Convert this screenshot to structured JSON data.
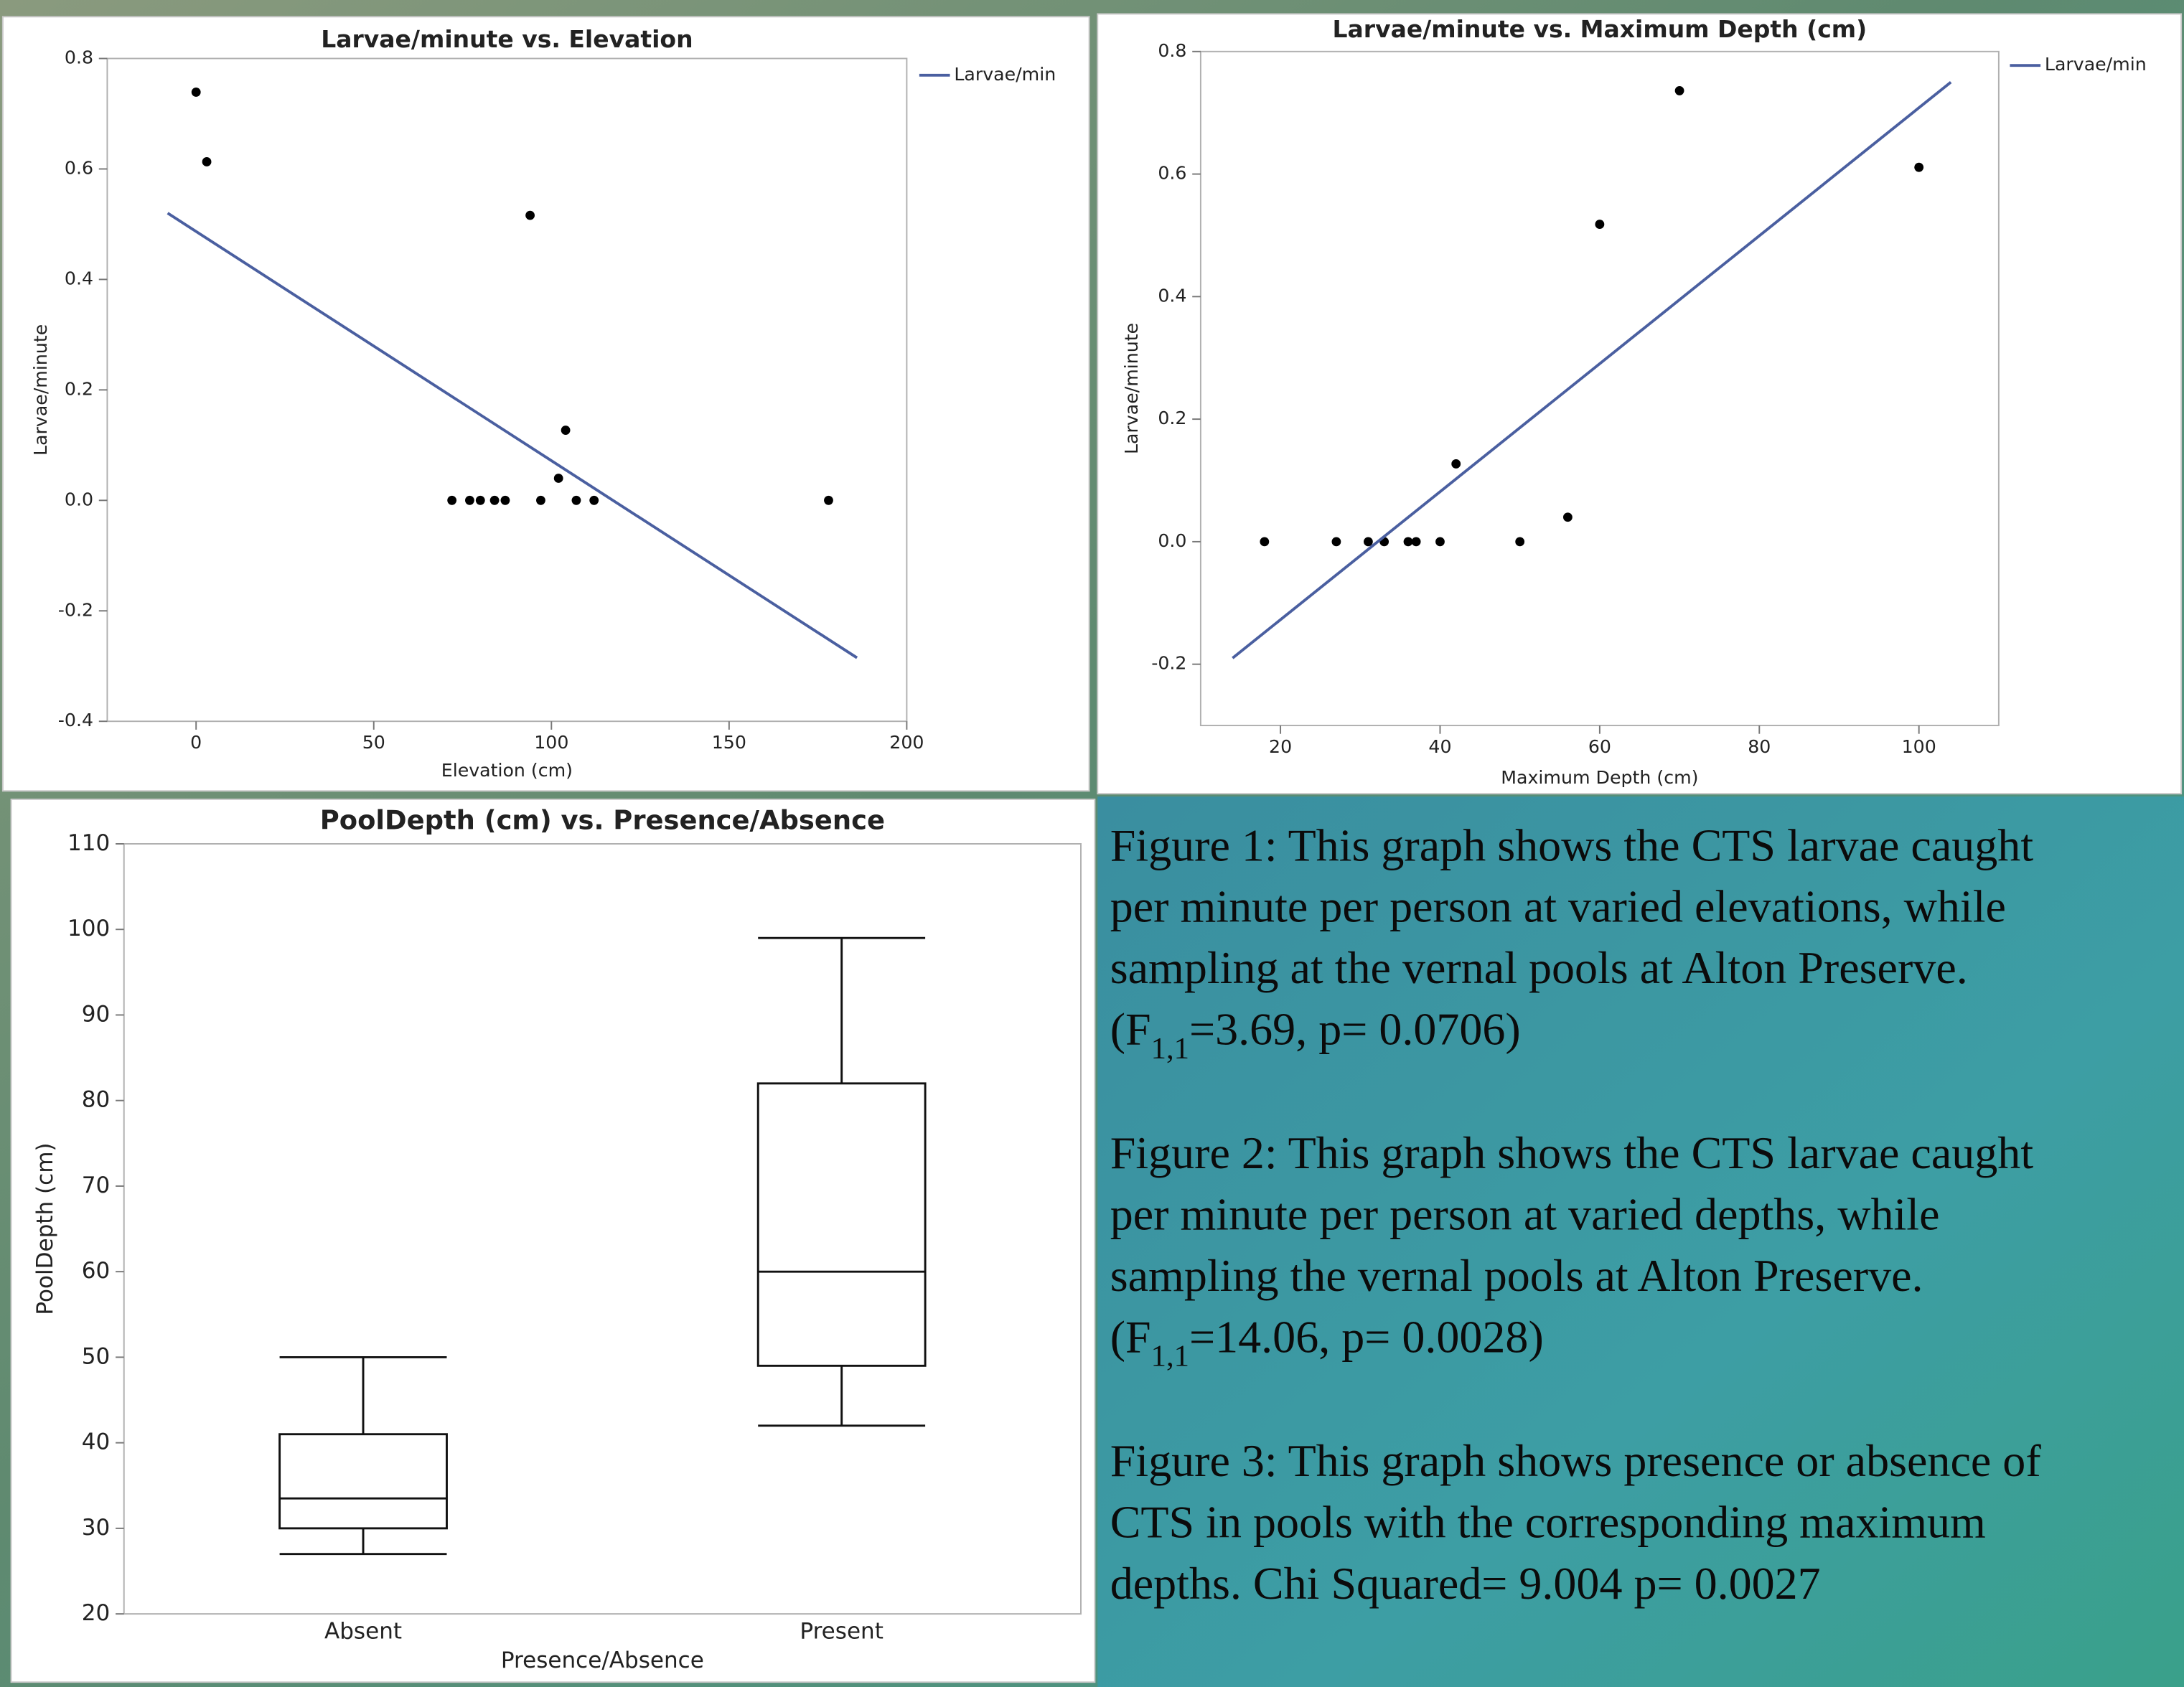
{
  "chart_data": [
    {
      "type": "scatter",
      "title": "Larvae/minute vs. Elevation",
      "xlabel": "Elevation (cm)",
      "ylabel": "Larvae/minute",
      "xlim": [
        -25,
        200
      ],
      "ylim": [
        -0.4,
        0.8
      ],
      "xticks": [
        0,
        50,
        100,
        150,
        200
      ],
      "yticks": [
        -0.4,
        -0.2,
        {
          "value": 0,
          "label": "0.0"
        },
        0.2,
        0.4,
        0.6,
        0.8
      ],
      "series": [
        {
          "style": "markers",
          "color": "#000000",
          "x": [
            0,
            3,
            94,
            104,
            102,
            72,
            77,
            80,
            84,
            87,
            97,
            107,
            112,
            178
          ],
          "values": [
            0.739,
            0.613,
            0.516,
            0.127,
            0.04,
            0,
            0,
            0,
            0,
            0,
            0,
            0,
            0,
            0
          ]
        },
        {
          "style": "line",
          "name": "Larvae/min",
          "color": "#4a5fa0",
          "x": [
            -8,
            186
          ],
          "values": [
            0.52,
            -0.285
          ]
        }
      ]
    },
    {
      "type": "scatter",
      "title": "Larvae/minute vs. Maximum Depth (cm)",
      "xlabel": "Maximum Depth (cm)",
      "ylabel": "Larvae/minute",
      "xlim": [
        10,
        110
      ],
      "ylim": [
        -0.3,
        0.8
      ],
      "xticks": [
        20,
        40,
        60,
        80,
        100
      ],
      "yticks": [
        -0.2,
        {
          "value": 0,
          "label": "0.0"
        },
        0.2,
        0.4,
        0.6,
        0.8
      ],
      "series": [
        {
          "style": "markers",
          "color": "#000000",
          "x": [
            18,
            27,
            31,
            33,
            36,
            37,
            40,
            50,
            42,
            56,
            60,
            70,
            100
          ],
          "values": [
            0,
            0,
            0,
            0,
            0,
            0,
            0,
            0,
            0.127,
            0.04,
            0.518,
            0.736,
            0.611
          ]
        },
        {
          "style": "line",
          "name": "Larvae/min",
          "color": "#4a5fa0",
          "x": [
            14,
            104
          ],
          "values": [
            -0.19,
            0.75
          ]
        }
      ]
    },
    {
      "type": "box",
      "title": "PoolDepth (cm) vs. Presence/Absence",
      "xlabel": "Presence/Absence",
      "ylabel": "PoolDepth (cm)",
      "ylim": [
        20,
        110
      ],
      "yticks": [
        20,
        30,
        40,
        50,
        60,
        70,
        80,
        90,
        100,
        110
      ],
      "categories": [
        "Absent",
        "Present"
      ],
      "boxes": [
        {
          "min": 27,
          "q1": 30,
          "median": 33.5,
          "q3": 41,
          "max": 50
        },
        {
          "min": 42,
          "q1": 49,
          "median": 60,
          "q3": 82,
          "max": 99
        }
      ]
    }
  ],
  "captions": [
    {
      "lines": [
        "Figure 1: This graph shows the CTS larvae caught",
        "per minute per person at varied elevations, while",
        "sampling at the vernal pools at Alton Preserve."
      ],
      "formula": {
        "pre": "(F",
        "sub": "1,1",
        "post": "=3.69, p= 0.0706)"
      }
    },
    {
      "lines": [
        "Figure 2: This graph shows the CTS larvae caught",
        "per minute per person at varied depths, while",
        "sampling the vernal pools at Alton Preserve."
      ],
      "formula": {
        "pre": "(F",
        "sub": "1,1",
        "post": "=14.06, p= 0.0028)"
      }
    },
    {
      "lines": [
        "Figure 3: This graph shows presence  or absence of",
        "CTS in pools with the corresponding maximum",
        "depths. Chi Squared= 9.004 p= 0.0027"
      ]
    }
  ]
}
